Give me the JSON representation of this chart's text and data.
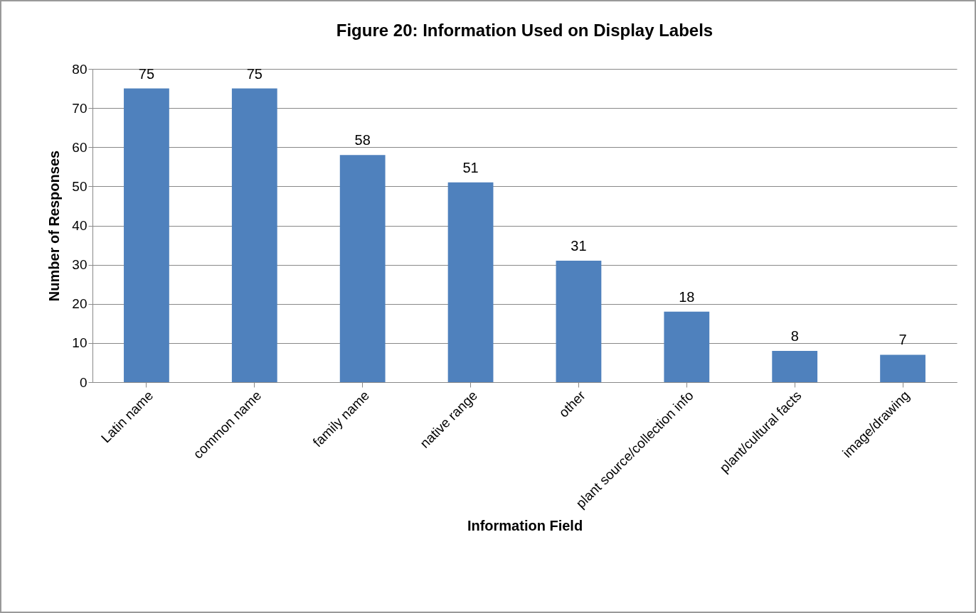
{
  "chart_data": {
    "type": "bar",
    "title": "Figure 20: Information Used on Display Labels",
    "xlabel": "Information Field",
    "ylabel": "Number of Responses",
    "categories": [
      "Latin name",
      "common name",
      "family name",
      "native range",
      "other",
      "plant source/collection info",
      "plant/cultural facts",
      "image/drawing"
    ],
    "values": [
      75,
      75,
      58,
      51,
      31,
      18,
      8,
      7
    ],
    "color": "#4f81bd",
    "ylim": [
      0,
      80
    ],
    "yticks": [
      0,
      10,
      20,
      30,
      40,
      50,
      60,
      70,
      80
    ],
    "grid": "y",
    "data_labels": true
  }
}
